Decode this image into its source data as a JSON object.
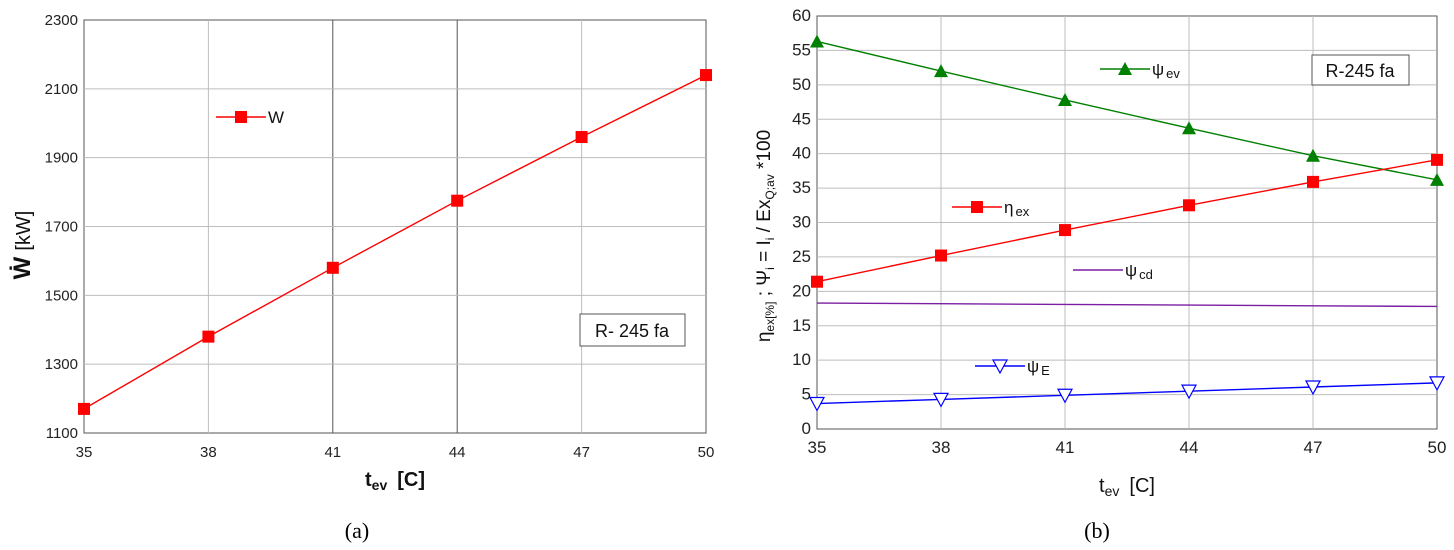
{
  "chart_data": [
    {
      "type": "line",
      "panel_caption": "(a)",
      "x": [
        35,
        38,
        41,
        44,
        47,
        50
      ],
      "xticks": [
        "35",
        "38",
        "41",
        "44",
        "47",
        "50"
      ],
      "yticks": [
        "1100",
        "1300",
        "1500",
        "1700",
        "1900",
        "2100",
        "2300"
      ],
      "xlim": [
        35,
        50
      ],
      "ylim": [
        1100,
        2300
      ],
      "xlabel": {
        "main": "t",
        "sub": "ev",
        "unit": "[C]"
      },
      "ylabel": {
        "main": "Ẇ",
        "unit": "[kW]"
      },
      "annotation": "R- 245 fa",
      "series": [
        {
          "name": "W",
          "color": "#ff0000",
          "marker": "square",
          "values": [
            1170,
            1380,
            1580,
            1775,
            1960,
            2140
          ]
        }
      ]
    },
    {
      "type": "line",
      "panel_caption": "(b)",
      "x": [
        35,
        38,
        41,
        44,
        47,
        50
      ],
      "xticks": [
        "35",
        "38",
        "41",
        "44",
        "47",
        "50"
      ],
      "yticks": [
        "0",
        "5",
        "10",
        "15",
        "20",
        "25",
        "30",
        "35",
        "40",
        "45",
        "50",
        "55",
        "60"
      ],
      "xlim": [
        35,
        50
      ],
      "ylim": [
        0,
        60
      ],
      "xlabel": {
        "main": "t",
        "sub": "ev",
        "unit": "[C]"
      },
      "ylabel": {
        "eta": "η",
        "eta_sub": "ex[%]",
        "sep": " ; Ψ",
        "psi_sub": "i",
        "mid": " = I",
        "i_sub": "i",
        "div": " / Ex",
        "ex_sub": "Q;av",
        "tail": " *100"
      },
      "annotation": "R-245 fa",
      "series": [
        {
          "name": "ψ",
          "sub": "ev",
          "color": "#008000",
          "marker": "triangle-up",
          "values": [
            56.3,
            52,
            47.8,
            43.7,
            39.7,
            36.2
          ]
        },
        {
          "name": "η",
          "sub": "ex",
          "color": "#ff0000",
          "marker": "square",
          "values": [
            21.4,
            25.2,
            28.9,
            32.5,
            35.9,
            39.1
          ]
        },
        {
          "name": "ψ",
          "sub": "cd",
          "color": "#7b1fa2",
          "marker": "bowtie",
          "values": [
            18.3,
            18.2,
            18.1,
            18.0,
            17.9,
            17.8
          ]
        },
        {
          "name": "ψ",
          "sub": "E",
          "color": "#0000ff",
          "marker": "triangle-down-open",
          "values": [
            3.7,
            4.3,
            4.9,
            5.5,
            6.1,
            6.7
          ]
        }
      ]
    }
  ]
}
